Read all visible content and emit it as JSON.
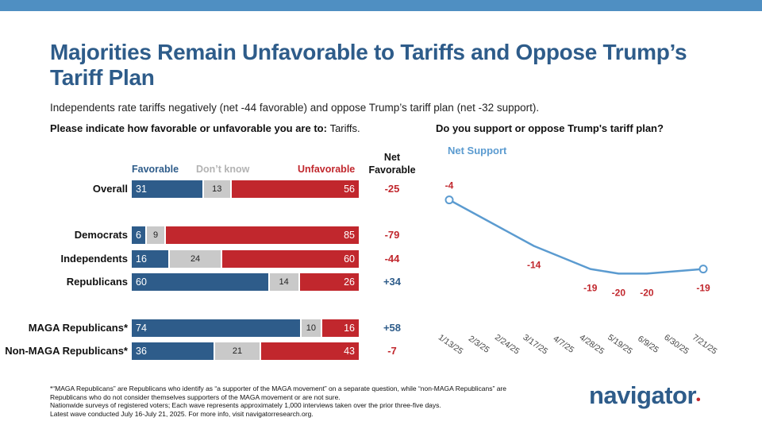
{
  "title": "Majorities Remain Unfavorable to Tariffs and Oppose Trump’s Tariff Plan",
  "subtitle": "Independents rate tariffs negatively (net -44 favorable) and oppose Trump’s tariff plan (net -32 support).",
  "left_question": "Please indicate how favorable or unfavorable you are to:",
  "left_question_topic": "Tariffs.",
  "right_question": "Do you support or oppose Trump's tariff plan?",
  "footer_lines": [
    "*“MAGA Republicans” are Republicans who identify as “a supporter of the MAGA movement” on a separate question, while “non-MAGA Republicans” are",
    "Republicans who do not consider themselves supporters of the MAGA movement or are not sure.",
    "Nationwide surveys of registered voters; Each wave represents approximately 1,000 interviews taken over the prior three-five days.",
    "Latest wave conducted July 16-July 21, 2025. For more info, visit navigatorresearch.org."
  ],
  "logo": "navigator",
  "logo_dot": "•",
  "colors": {
    "favorable": "#2e5c8a",
    "dont_know": "#c9c9c9",
    "unfavorable": "#c1272d",
    "line": "#5b9bd0"
  },
  "chart_data": [
    {
      "type": "bar",
      "stacked": true,
      "orientation": "horizontal",
      "series_labels": {
        "favorable": "Favorable",
        "dont_know": "Don’t know",
        "unfavorable": "Unfavorable",
        "net": "Net Favorable"
      },
      "net_header": [
        "Net",
        "Favorable"
      ],
      "rows": [
        {
          "label": "Overall",
          "favorable": 31,
          "dont_know": 13,
          "unfavorable": 56,
          "net": "-25"
        },
        {
          "label": "Democrats",
          "favorable": 6,
          "dont_know": 9,
          "unfavorable": 85,
          "net": "-79"
        },
        {
          "label": "Independents",
          "favorable": 16,
          "dont_know": 24,
          "unfavorable": 60,
          "net": "-44"
        },
        {
          "label": "Republicans",
          "favorable": 60,
          "dont_know": 14,
          "unfavorable": 26,
          "net": "+34"
        },
        {
          "label": "MAGA Republicans*",
          "favorable": 74,
          "dont_know": 10,
          "unfavorable": 16,
          "net": "+58"
        },
        {
          "label": "Non-MAGA Republicans*",
          "favorable": 36,
          "dont_know": 21,
          "unfavorable": 43,
          "net": "-7"
        }
      ]
    },
    {
      "type": "line",
      "series_name": "Net Support",
      "x": [
        "1/13/25",
        "2/3/25",
        "2/24/25",
        "3/17/25",
        "4/7/25",
        "4/28/25",
        "5/19/25",
        "6/9/25",
        "6/30/25",
        "7/21/25"
      ],
      "points": [
        {
          "x": "1/13/25",
          "y": -4,
          "label": "-4"
        },
        {
          "x": "3/17/25",
          "y": -14,
          "label": "-14"
        },
        {
          "x": "4/28/25",
          "y": -19,
          "label": "-19"
        },
        {
          "x": "5/19/25",
          "y": -20,
          "label": "-20"
        },
        {
          "x": "6/9/25",
          "y": -20,
          "label": "-20"
        },
        {
          "x": "7/21/25",
          "y": -19,
          "label": "-19"
        }
      ],
      "ylim": [
        -22,
        -2
      ]
    }
  ]
}
